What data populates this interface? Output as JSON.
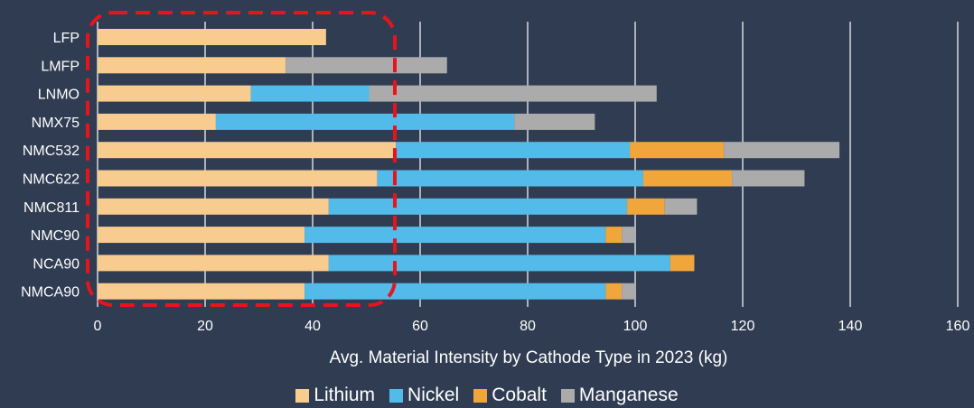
{
  "chart_data": {
    "type": "bar",
    "orientation": "horizontal",
    "stacked": true,
    "xlabel": "Avg. Material Intensity by Cathode Type in 2023 (kg)",
    "xlim": [
      0,
      160
    ],
    "xticks": [
      0,
      20,
      40,
      60,
      80,
      100,
      120,
      140,
      160
    ],
    "categories": [
      "LFP",
      "LMFP",
      "LNMO",
      "NMX75",
      "NMC532",
      "NMC622",
      "NMC811",
      "NMC90",
      "NCA90",
      "NMCA90"
    ],
    "series": [
      {
        "name": "Lithium",
        "color": "#f8cb8e",
        "values": [
          42.5,
          35,
          28.5,
          22,
          55.5,
          52,
          43,
          38.5,
          43,
          38.5
        ]
      },
      {
        "name": "Nickel",
        "color": "#53bbea",
        "values": [
          0,
          0,
          22,
          55.5,
          43.5,
          49.5,
          55.5,
          56,
          63.5,
          56
        ]
      },
      {
        "name": "Cobalt",
        "color": "#f0a63a",
        "values": [
          0,
          0,
          0,
          0,
          17.5,
          16.5,
          7,
          3,
          4.5,
          3
        ]
      },
      {
        "name": "Manganese",
        "color": "#ababab",
        "values": [
          0,
          30,
          53.5,
          15,
          21.5,
          13.5,
          6,
          2.5,
          0,
          2.5
        ]
      }
    ],
    "grid": true,
    "legend_position": "bottom",
    "annotation": "red dashed rounded rectangle highlighting the Lithium portion"
  },
  "colors": {
    "background": "#2f3c52",
    "text": "#ffffff",
    "gridline": "#ffffff",
    "highlight": "#e8141c"
  }
}
